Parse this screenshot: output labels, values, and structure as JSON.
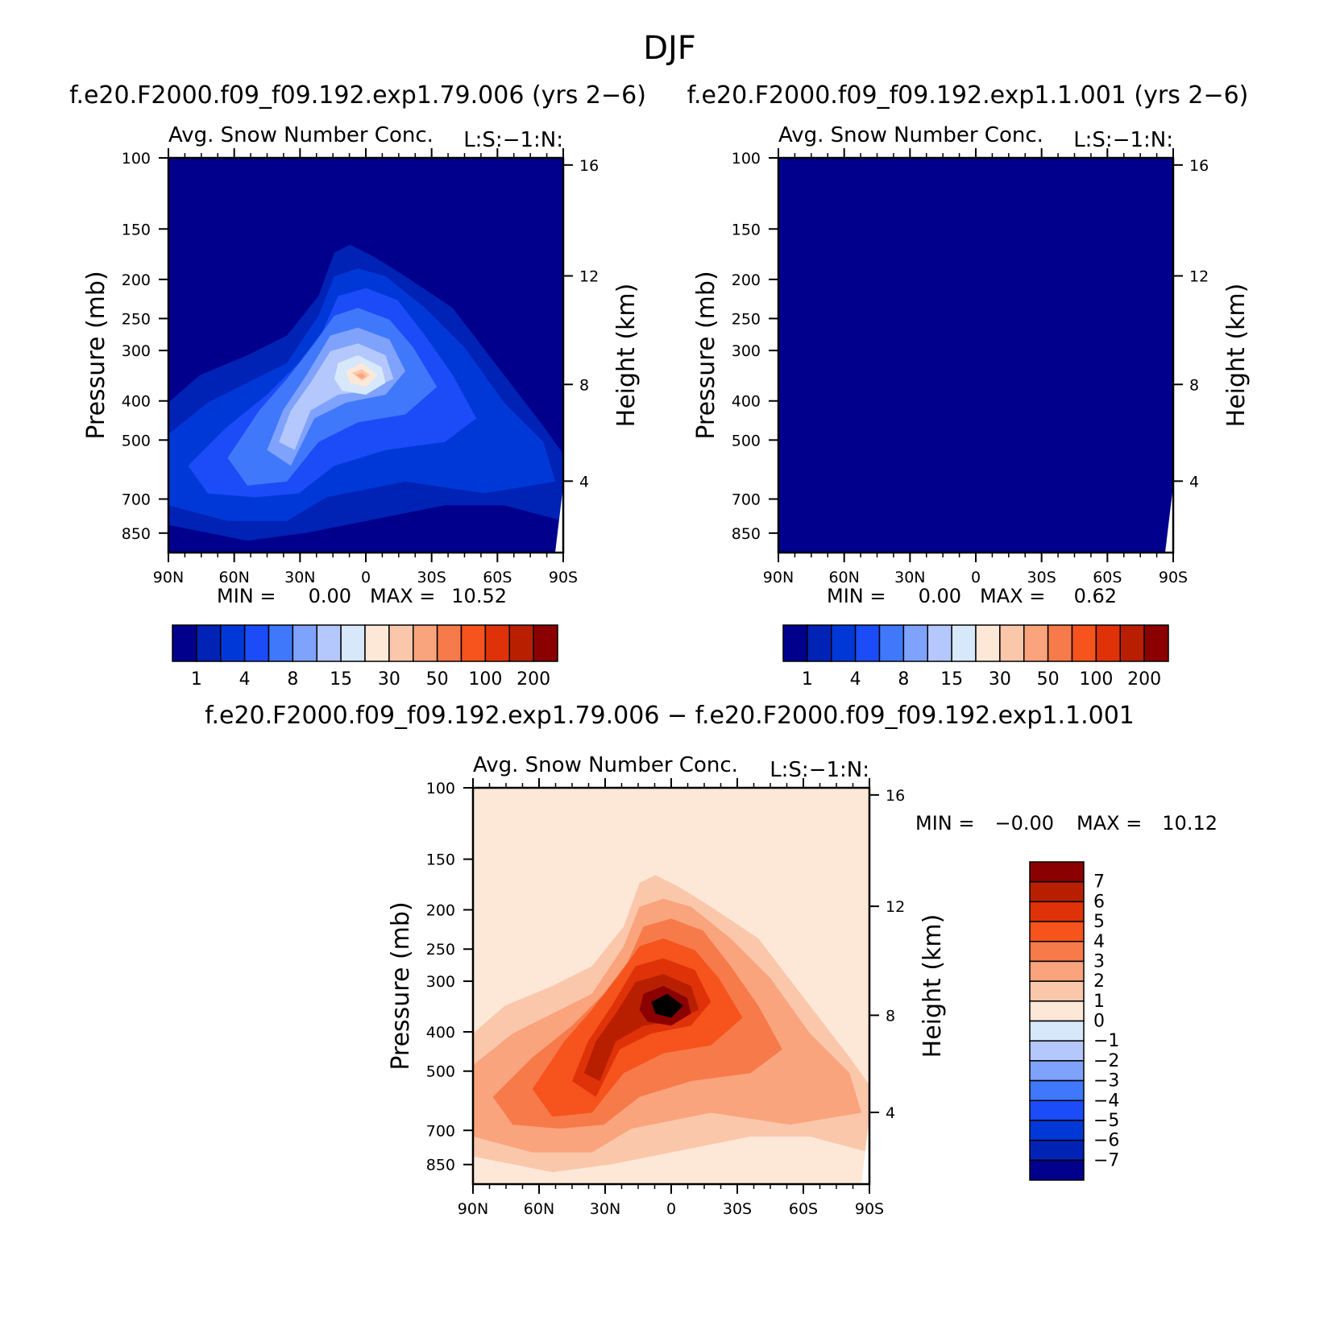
{
  "figure": {
    "title": "DJF"
  },
  "colors": {
    "seq16": [
      "#00008c",
      "#0022b5",
      "#0038d8",
      "#1c4cf8",
      "#3f78fa",
      "#7fa2fc",
      "#b4c8fe",
      "#d7e8fa",
      "#fde8d8",
      "#fbc7ab",
      "#f9a47c",
      "#f77a4a",
      "#f6531d",
      "#e03208",
      "#b81f01",
      "#8b0000"
    ],
    "div16": [
      "#00008c",
      "#0022b5",
      "#0038d8",
      "#1c4cf8",
      "#3f78fa",
      "#7fa2fc",
      "#b4c8fe",
      "#d7e8fa",
      "#fde8d8",
      "#fbc7ab",
      "#f9a47c",
      "#f77a4a",
      "#f6531d",
      "#e03208",
      "#b81f01",
      "#8b0000"
    ]
  },
  "chart_data": [
    {
      "id": "panel1",
      "type": "heatmap",
      "title": "f.e20.F2000.f09_f09.192.exp1.79.006 (yrs 2−6)",
      "subtitle": "Avg. Snow Number Conc.",
      "subtitle_right": "L:S:−1:N:",
      "ylabel": "Pressure (mb)",
      "ylabel_right": "Height (km)",
      "xticks": [
        "90N",
        "60N",
        "30N",
        "0",
        "30S",
        "60S",
        "90S"
      ],
      "yticks": [
        "100",
        "150",
        "200",
        "250",
        "300",
        "400",
        "500",
        "700",
        "850"
      ],
      "yticks_right": [
        "16",
        "12",
        "8",
        "4"
      ],
      "stats": {
        "min_label": "MIN =",
        "min": "0.00",
        "max_label": "MAX =",
        "max": "10.52"
      },
      "colorbar": {
        "labels": [
          "1",
          "4",
          "8",
          "15",
          "30",
          "50",
          "100",
          "200"
        ]
      },
      "peak_level": 10
    },
    {
      "id": "panel2",
      "type": "heatmap",
      "title": "f.e20.F2000.f09_f09.192.exp1.1.001 (yrs 2−6)",
      "subtitle": "Avg. Snow Number Conc.",
      "subtitle_right": "L:S:−1:N:",
      "ylabel": "Pressure (mb)",
      "ylabel_right": "Height (km)",
      "xticks": [
        "90N",
        "60N",
        "30N",
        "0",
        "30S",
        "60S",
        "90S"
      ],
      "yticks": [
        "100",
        "150",
        "200",
        "250",
        "300",
        "400",
        "500",
        "700",
        "850"
      ],
      "yticks_right": [
        "16",
        "12",
        "8",
        "4"
      ],
      "stats": {
        "min_label": "MIN =",
        "min": "0.00",
        "max_label": "MAX =",
        "max": "0.62"
      },
      "colorbar": {
        "labels": [
          "1",
          "4",
          "8",
          "15",
          "30",
          "50",
          "100",
          "200"
        ]
      },
      "peak_level": 0
    },
    {
      "id": "panel3",
      "type": "heatmap",
      "title": "f.e20.F2000.f09_f09.192.exp1.79.006 − f.e20.F2000.f09_f09.192.exp1.1.001",
      "subtitle": "Avg. Snow Number Conc.",
      "subtitle_right": "L:S:−1:N:",
      "ylabel": "Pressure (mb)",
      "ylabel_right": "Height (km)",
      "xticks": [
        "90N",
        "60N",
        "30N",
        "0",
        "30S",
        "60S",
        "90S"
      ],
      "yticks": [
        "100",
        "150",
        "200",
        "250",
        "300",
        "400",
        "500",
        "700",
        "850"
      ],
      "yticks_right": [
        "16",
        "12",
        "8",
        "4"
      ],
      "stats": {
        "min_label": "MIN =",
        "min": "−0.00",
        "max_label": "MAX =",
        "max": "10.12"
      },
      "colorbar": {
        "labels": [
          "7",
          "6",
          "5",
          "4",
          "3",
          "2",
          "1",
          "0",
          "−1",
          "−2",
          "−3",
          "−4",
          "−5",
          "−6",
          "−7"
        ]
      }
    }
  ]
}
